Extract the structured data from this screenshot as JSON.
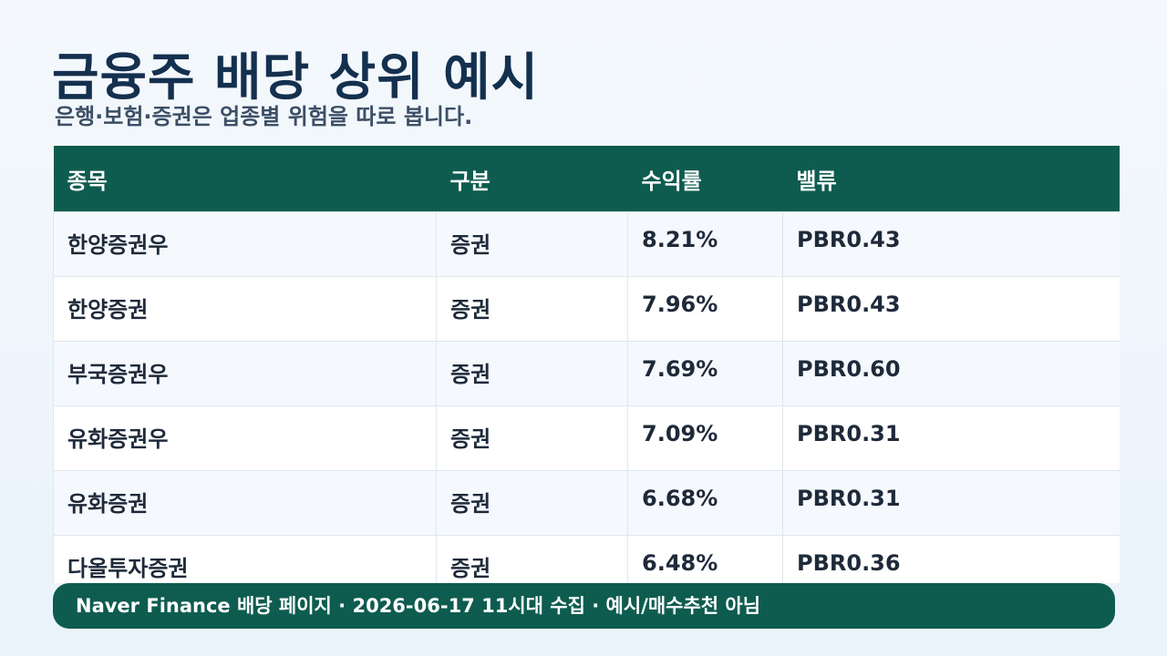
{
  "header": {
    "title": "금융주 배당 상위 예시",
    "subtitle": "은행·보험·증권은 업종별 위험을 따로 봅니다."
  },
  "table": {
    "columns": [
      "종목",
      "구분",
      "수익률",
      "밸류"
    ],
    "rows": [
      [
        "한양증권우",
        "증권",
        "8.21%",
        "PBR0.43"
      ],
      [
        "한양증권",
        "증권",
        "7.96%",
        "PBR0.43"
      ],
      [
        "부국증권우",
        "증권",
        "7.69%",
        "PBR0.60"
      ],
      [
        "유화증권우",
        "증권",
        "7.09%",
        "PBR0.31"
      ],
      [
        "유화증권",
        "증권",
        "6.68%",
        "PBR0.31"
      ],
      [
        "다올투자증권",
        "증권",
        "6.48%",
        "PBR0.36"
      ]
    ]
  },
  "footer": {
    "text": "Naver Finance 배당 페이지 · 2026-06-17 11시대 수집 · 예시/매수추천 아님"
  }
}
